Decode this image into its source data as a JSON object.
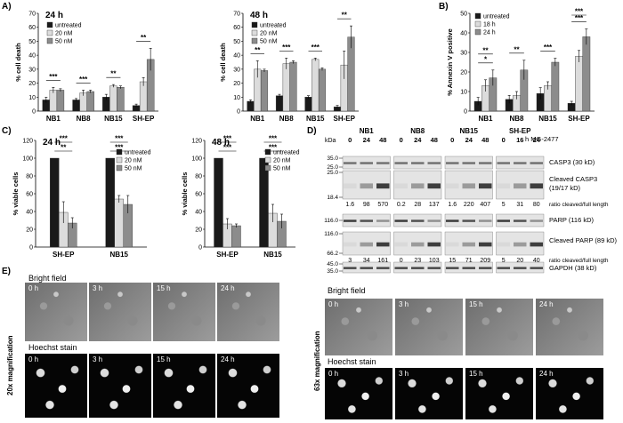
{
  "colors": {
    "untreated": "#1a1a1a",
    "light": "#dcdcdc",
    "mid": "#8c8c8c"
  },
  "panels": {
    "A": "A)",
    "B": "B)",
    "C": "C)",
    "D": "D)",
    "E": "E)"
  },
  "chart_data": [
    {
      "id": "A1",
      "type": "bar",
      "panel": "A)",
      "time_label": "24 h",
      "ylabel": "% cell death",
      "ylim": [
        0,
        70
      ],
      "yticks": [
        0,
        10,
        20,
        30,
        40,
        50,
        60,
        70
      ],
      "categories": [
        "NB1",
        "NB8",
        "NB15",
        "SH-EP"
      ],
      "series": [
        {
          "name": "untreated",
          "values": [
            8,
            8,
            10,
            4
          ],
          "errors": [
            2,
            1,
            2,
            1
          ]
        },
        {
          "name": "20 nM",
          "values": [
            15,
            13,
            18,
            21
          ],
          "errors": [
            2,
            2,
            1,
            3
          ]
        },
        {
          "name": "50 nM",
          "values": [
            15,
            14,
            17,
            37
          ],
          "errors": [
            1,
            1,
            1,
            8
          ]
        }
      ],
      "annotations": [
        {
          "cat": 0,
          "text": "***"
        },
        {
          "cat": 1,
          "text": "***"
        },
        {
          "cat": 2,
          "text": "**"
        },
        {
          "cat": 3,
          "text": "**"
        }
      ],
      "legend": "top-left"
    },
    {
      "id": "A2",
      "type": "bar",
      "time_label": "48 h",
      "ylabel": "% cell death",
      "ylim": [
        0,
        70
      ],
      "yticks": [
        0,
        10,
        20,
        30,
        40,
        50,
        60,
        70
      ],
      "categories": [
        "NB1",
        "NB8",
        "NB15",
        "SH-EP"
      ],
      "series": [
        {
          "name": "untreated",
          "values": [
            7,
            11,
            10,
            3
          ],
          "errors": [
            1,
            1,
            1,
            1
          ]
        },
        {
          "name": "20 nM",
          "values": [
            30,
            34,
            37,
            33
          ],
          "errors": [
            6,
            4,
            1,
            10
          ]
        },
        {
          "name": "50 nM",
          "values": [
            29,
            35,
            30,
            53
          ],
          "errors": [
            1,
            1,
            1,
            8
          ]
        }
      ],
      "annotations": [
        {
          "cat": 0,
          "text": "**"
        },
        {
          "cat": 1,
          "text": "***"
        },
        {
          "cat": 2,
          "text": "***"
        },
        {
          "cat": 3,
          "text": "**"
        }
      ],
      "legend": "top-left"
    },
    {
      "id": "B",
      "type": "bar",
      "panel": "B)",
      "ylabel": "% Annexin V positive",
      "ylim": [
        0,
        50
      ],
      "yticks": [
        0,
        10,
        20,
        30,
        40,
        50
      ],
      "categories": [
        "NB1",
        "NB8",
        "NB15",
        "SH-EP"
      ],
      "series": [
        {
          "name": "untreated",
          "values": [
            5,
            6,
            9,
            4
          ],
          "errors": [
            2,
            2,
            3,
            1
          ]
        },
        {
          "name": "18 h",
          "values": [
            13,
            8,
            13,
            28
          ],
          "errors": [
            3,
            2,
            2,
            3
          ]
        },
        {
          "name": "24 h",
          "values": [
            17,
            21,
            25,
            38
          ],
          "errors": [
            4,
            5,
            2,
            4
          ]
        }
      ],
      "annotations": [
        {
          "cat": 0,
          "text": "*"
        },
        {
          "cat": 0,
          "text": "**"
        },
        {
          "cat": 1,
          "text": "**"
        },
        {
          "cat": 2,
          "text": "***"
        },
        {
          "cat": 3,
          "text": "***"
        },
        {
          "cat": 3,
          "text": "***"
        }
      ],
      "legend": "top-left"
    },
    {
      "id": "C1",
      "type": "bar",
      "panel": "C)",
      "time_label": "24 h",
      "ylabel": "% viable cells",
      "ylim": [
        0,
        120
      ],
      "yticks": [
        0,
        20,
        40,
        60,
        80,
        100,
        120
      ],
      "categories": [
        "SH-EP",
        "NB15"
      ],
      "series": [
        {
          "name": "untreated",
          "values": [
            100,
            100
          ],
          "errors": [
            0,
            0
          ]
        },
        {
          "name": "20 nM",
          "values": [
            39,
            54
          ],
          "errors": [
            12,
            4
          ]
        },
        {
          "name": "50 nM",
          "values": [
            27,
            48
          ],
          "errors": [
            6,
            10
          ]
        }
      ],
      "annotations": [
        {
          "cat": 0,
          "text": "**"
        },
        {
          "cat": 0,
          "text": "***"
        },
        {
          "cat": 1,
          "text": "***"
        },
        {
          "cat": 1,
          "text": "***"
        }
      ],
      "legend": "top-right"
    },
    {
      "id": "C2",
      "type": "bar",
      "time_label": "48 h",
      "ylabel": "% viable cells",
      "ylim": [
        0,
        120
      ],
      "yticks": [
        0,
        20,
        40,
        60,
        80,
        100,
        120
      ],
      "categories": [
        "SH-EP",
        "NB15"
      ],
      "series": [
        {
          "name": "untreated",
          "values": [
            100,
            100
          ],
          "errors": [
            0,
            0
          ]
        },
        {
          "name": "20 nM",
          "values": [
            26,
            38
          ],
          "errors": [
            6,
            10
          ]
        },
        {
          "name": "50 nM",
          "values": [
            24,
            29
          ],
          "errors": [
            2,
            8
          ]
        }
      ],
      "annotations": [
        {
          "cat": 0,
          "text": "***"
        },
        {
          "cat": 0,
          "text": "***"
        },
        {
          "cat": 1,
          "text": "***"
        },
        {
          "cat": 1,
          "text": "***"
        }
      ],
      "legend": "top-right"
    }
  ],
  "western": {
    "kda_label": "kDa",
    "time_header": "h MG-2477",
    "cell_lines": [
      {
        "name": "NB1",
        "times": [
          "0",
          "24",
          "48"
        ]
      },
      {
        "name": "NB8",
        "times": [
          "0",
          "24",
          "48"
        ]
      },
      {
        "name": "NB15",
        "times": [
          "0",
          "24",
          "48"
        ]
      },
      {
        "name": "SH-EP",
        "times": [
          "0",
          "16",
          "24"
        ]
      }
    ],
    "rows": [
      {
        "label": "CASP3 (30 kD)",
        "markers": [
          "35.0",
          "25.0"
        ],
        "kind": "single"
      },
      {
        "label": "Cleaved CASP3\n(19/17 kD)",
        "markers": [
          "25.0",
          "18.4"
        ],
        "kind": "cleaved"
      },
      {
        "label": "PARP (116 kD)",
        "markers": [
          "116.0"
        ],
        "kind": "single"
      },
      {
        "label": "Cleaved PARP (89 kD)",
        "markers": [
          "116.0",
          "66.2"
        ],
        "kind": "cleaved"
      },
      {
        "label": "GAPDH (38 kD)",
        "markers": [
          "45.0",
          "35.0"
        ],
        "kind": "loading"
      }
    ],
    "ratios": [
      {
        "after_row": 1,
        "values": [
          [
            "1.6",
            "98",
            "570"
          ],
          [
            "0.2",
            "28",
            "137"
          ],
          [
            "1.6",
            "220",
            "407"
          ],
          [
            "5",
            "31",
            "80"
          ]
        ],
        "label": "ratio cleaved/full length"
      },
      {
        "after_row": 3,
        "values": [
          [
            "3",
            "34",
            "161"
          ],
          [
            "0",
            "23",
            "103"
          ],
          [
            "15",
            "71",
            "209"
          ],
          [
            "5",
            "20",
            "40"
          ]
        ],
        "label": "ratio cleaved/full length"
      }
    ]
  },
  "microscopy": {
    "left": {
      "bright_title": "Bright field",
      "hoechst_title": "Hoechst stain",
      "side_label": "20x magnification",
      "times": [
        "0 h",
        "3 h",
        "15 h",
        "24 h"
      ]
    },
    "right": {
      "bright_title": "Bright field",
      "hoechst_title": "Hoechst stain",
      "side_label": "63x magnification",
      "times": [
        "0 h",
        "3 h",
        "15 h",
        "24 h"
      ]
    }
  }
}
